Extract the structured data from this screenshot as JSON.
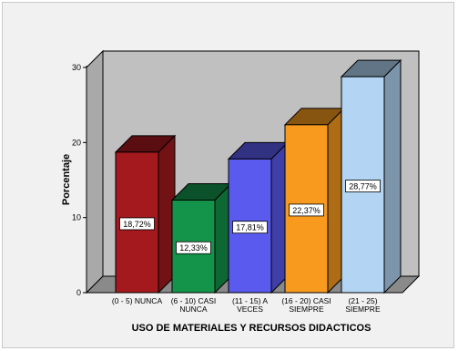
{
  "chart_data": {
    "type": "bar",
    "xlabel": "USO DE MATERIALES Y RECURSOS DIDACTICOS",
    "ylabel": "Porcentaje",
    "ylim": [
      0,
      30
    ],
    "yticks": [
      0,
      10,
      20,
      30
    ],
    "categories": [
      [
        "(0 - 5) NUNCA"
      ],
      [
        "(6 - 10)  CASI",
        "NUNCA"
      ],
      [
        "(11 - 15)  A",
        "VECES"
      ],
      [
        "(16 - 20)  CASI",
        "SIEMPRE"
      ],
      [
        "(21 - 25)",
        "SIEMPRE"
      ]
    ],
    "values": [
      18.72,
      12.33,
      17.81,
      22.37,
      28.77
    ],
    "data_labels": [
      "18,72%",
      "12,33%",
      "17,81%",
      "22,37%",
      "28,77%"
    ],
    "colors": [
      "#a3191e",
      "#14944a",
      "#5a5aee",
      "#f79a1e",
      "#b3d5f3"
    ],
    "grid": false,
    "background": "#c0c0c0"
  }
}
